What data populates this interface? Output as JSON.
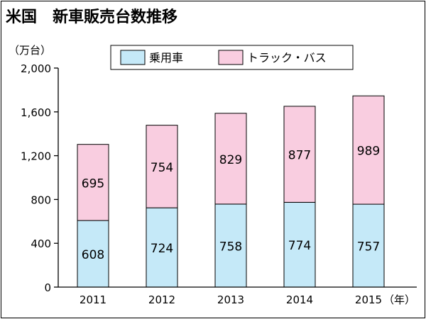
{
  "chart_data": {
    "type": "bar",
    "stacked": true,
    "title": "米国　新車販売台数推移",
    "ylabel": "（万台）",
    "xunit": "（年）",
    "categories": [
      "2011",
      "2012",
      "2013",
      "2014",
      "2015"
    ],
    "series": [
      {
        "name": "乗用車",
        "values": [
          608,
          724,
          758,
          774,
          757
        ],
        "color": "#c5e9f8"
      },
      {
        "name": "トラック・バス",
        "values": [
          695,
          754,
          829,
          877,
          989
        ],
        "color": "#f9cde0"
      }
    ],
    "ylim": [
      0,
      2000
    ],
    "yticks": [
      0,
      400,
      800,
      1200,
      1600,
      2000
    ],
    "ytick_labels": [
      "0",
      "400",
      "800",
      "1,200",
      "1,600",
      "2,000"
    ],
    "grid": false,
    "legend": "top"
  }
}
